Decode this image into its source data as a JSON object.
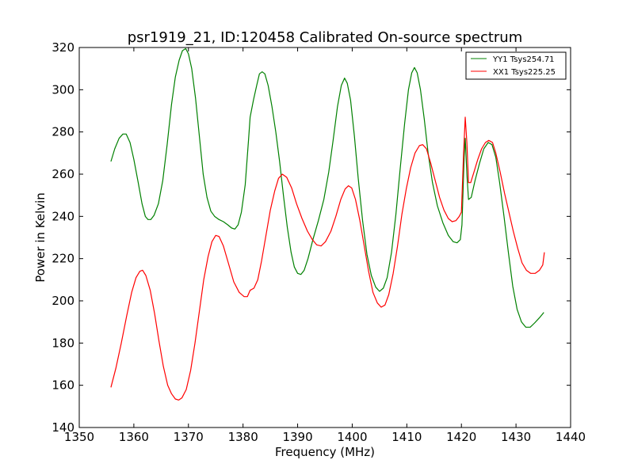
{
  "chart_data": {
    "type": "line",
    "title": "psr1919_21, ID:120458 Calibrated On-source spectrum",
    "xlabel": "Frequency (MHz)",
    "ylabel": "Power in Kelvin",
    "xlim": [
      1350,
      1440
    ],
    "ylim": [
      140,
      320
    ],
    "x_ticks": [
      1350,
      1360,
      1370,
      1380,
      1390,
      1400,
      1410,
      1420,
      1430,
      1440
    ],
    "y_ticks": [
      140,
      160,
      180,
      200,
      220,
      240,
      260,
      280,
      300,
      320
    ],
    "grid": false,
    "legend_position": "top-right",
    "series": [
      {
        "name": "YY1 Tsys254.71",
        "color": "#008000",
        "points": [
          [
            1355.8,
            266
          ],
          [
            1356.5,
            272
          ],
          [
            1357.3,
            277
          ],
          [
            1358.0,
            279
          ],
          [
            1358.6,
            279
          ],
          [
            1359.3,
            275
          ],
          [
            1360.0,
            267
          ],
          [
            1360.8,
            256
          ],
          [
            1361.5,
            246
          ],
          [
            1362.1,
            240
          ],
          [
            1362.6,
            238.5
          ],
          [
            1363.1,
            238.5
          ],
          [
            1363.7,
            240.5
          ],
          [
            1364.5,
            246
          ],
          [
            1365.3,
            257
          ],
          [
            1366.1,
            274
          ],
          [
            1366.9,
            293
          ],
          [
            1367.6,
            306
          ],
          [
            1368.3,
            314
          ],
          [
            1368.9,
            318.5
          ],
          [
            1369.5,
            319.5
          ],
          [
            1370.0,
            317
          ],
          [
            1370.6,
            310
          ],
          [
            1371.3,
            296
          ],
          [
            1372.0,
            278
          ],
          [
            1372.7,
            260
          ],
          [
            1373.4,
            249
          ],
          [
            1374.1,
            242.5
          ],
          [
            1374.8,
            240
          ],
          [
            1375.6,
            238.5
          ],
          [
            1376.4,
            237.5
          ],
          [
            1377.2,
            236
          ],
          [
            1377.9,
            234.5
          ],
          [
            1378.5,
            234
          ],
          [
            1379.1,
            236
          ],
          [
            1379.7,
            242
          ],
          [
            1380.4,
            255
          ],
          [
            1381.0,
            276
          ],
          [
            1381.3,
            287
          ],
          [
            1381.9,
            295
          ],
          [
            1382.5,
            302
          ],
          [
            1383.0,
            307.5
          ],
          [
            1383.5,
            308.5
          ],
          [
            1384.0,
            307.5
          ],
          [
            1384.6,
            302
          ],
          [
            1385.3,
            292
          ],
          [
            1386.0,
            280
          ],
          [
            1386.7,
            266
          ],
          [
            1387.4,
            250
          ],
          [
            1388.1,
            235
          ],
          [
            1388.8,
            223
          ],
          [
            1389.4,
            216
          ],
          [
            1390.0,
            213
          ],
          [
            1390.6,
            212.5
          ],
          [
            1391.2,
            214.5
          ],
          [
            1391.9,
            220
          ],
          [
            1392.8,
            229
          ],
          [
            1393.8,
            238
          ],
          [
            1394.8,
            248
          ],
          [
            1395.7,
            261
          ],
          [
            1396.5,
            276
          ],
          [
            1397.3,
            292
          ],
          [
            1398.0,
            302
          ],
          [
            1398.6,
            305.5
          ],
          [
            1399.1,
            303
          ],
          [
            1399.7,
            295
          ],
          [
            1400.4,
            278
          ],
          [
            1401.1,
            258
          ],
          [
            1401.9,
            238
          ],
          [
            1402.7,
            222
          ],
          [
            1403.5,
            212
          ],
          [
            1404.3,
            206.5
          ],
          [
            1405.0,
            204.5
          ],
          [
            1405.7,
            206
          ],
          [
            1406.4,
            211
          ],
          [
            1407.2,
            223
          ],
          [
            1408.0,
            241
          ],
          [
            1408.8,
            263
          ],
          [
            1409.6,
            284
          ],
          [
            1410.3,
            300
          ],
          [
            1410.9,
            308
          ],
          [
            1411.4,
            310.5
          ],
          [
            1411.9,
            308
          ],
          [
            1412.5,
            300
          ],
          [
            1413.2,
            286
          ],
          [
            1413.9,
            270
          ],
          [
            1414.7,
            256
          ],
          [
            1415.6,
            245
          ],
          [
            1416.6,
            237
          ],
          [
            1417.6,
            231
          ],
          [
            1418.5,
            228
          ],
          [
            1419.2,
            227.5
          ],
          [
            1419.8,
            229
          ],
          [
            1420.1,
            236
          ],
          [
            1420.5,
            268
          ],
          [
            1420.7,
            277
          ],
          [
            1421.0,
            260
          ],
          [
            1421.3,
            248
          ],
          [
            1421.8,
            249
          ],
          [
            1422.5,
            257
          ],
          [
            1423.3,
            265
          ],
          [
            1424.1,
            272
          ],
          [
            1424.9,
            275
          ],
          [
            1425.6,
            274
          ],
          [
            1426.3,
            268
          ],
          [
            1427.0,
            256
          ],
          [
            1427.8,
            240
          ],
          [
            1428.6,
            223
          ],
          [
            1429.4,
            207
          ],
          [
            1430.2,
            196
          ],
          [
            1431.0,
            190
          ],
          [
            1431.8,
            187.5
          ],
          [
            1432.6,
            187.5
          ],
          [
            1433.4,
            189.5
          ],
          [
            1434.3,
            192
          ],
          [
            1435.1,
            194.5
          ]
        ]
      },
      {
        "name": "XX1 Tsys225.25",
        "color": "#ff0000",
        "points": [
          [
            1355.8,
            159
          ],
          [
            1356.7,
            168
          ],
          [
            1357.7,
            180
          ],
          [
            1358.7,
            193
          ],
          [
            1359.6,
            204
          ],
          [
            1360.4,
            211
          ],
          [
            1361.1,
            214
          ],
          [
            1361.6,
            214.5
          ],
          [
            1362.2,
            212
          ],
          [
            1363.0,
            205
          ],
          [
            1363.8,
            194
          ],
          [
            1364.6,
            181
          ],
          [
            1365.4,
            169
          ],
          [
            1366.2,
            160
          ],
          [
            1366.9,
            156
          ],
          [
            1367.6,
            153.5
          ],
          [
            1368.2,
            153
          ],
          [
            1368.8,
            154
          ],
          [
            1369.6,
            158
          ],
          [
            1370.4,
            167
          ],
          [
            1371.2,
            180
          ],
          [
            1372.0,
            195
          ],
          [
            1372.8,
            210
          ],
          [
            1373.6,
            221
          ],
          [
            1374.3,
            228
          ],
          [
            1375.0,
            231
          ],
          [
            1375.6,
            230.5
          ],
          [
            1376.4,
            226
          ],
          [
            1377.3,
            218
          ],
          [
            1378.3,
            209
          ],
          [
            1379.3,
            204
          ],
          [
            1380.2,
            202
          ],
          [
            1380.8,
            202
          ],
          [
            1381.3,
            205
          ],
          [
            1382.0,
            206
          ],
          [
            1382.7,
            210
          ],
          [
            1383.4,
            219
          ],
          [
            1384.2,
            231
          ],
          [
            1385.0,
            243
          ],
          [
            1385.8,
            252
          ],
          [
            1386.5,
            258
          ],
          [
            1387.2,
            260
          ],
          [
            1388.0,
            258.5
          ],
          [
            1388.9,
            253.5
          ],
          [
            1389.8,
            246
          ],
          [
            1390.8,
            239
          ],
          [
            1391.8,
            233
          ],
          [
            1392.7,
            229
          ],
          [
            1393.5,
            226.5
          ],
          [
            1394.3,
            226
          ],
          [
            1395.1,
            228
          ],
          [
            1396.1,
            233
          ],
          [
            1397.0,
            240
          ],
          [
            1397.9,
            248
          ],
          [
            1398.7,
            253
          ],
          [
            1399.3,
            254.5
          ],
          [
            1399.9,
            253.5
          ],
          [
            1400.6,
            248
          ],
          [
            1401.4,
            238
          ],
          [
            1402.2,
            226
          ],
          [
            1403.0,
            214
          ],
          [
            1403.8,
            204
          ],
          [
            1404.6,
            199
          ],
          [
            1405.3,
            197
          ],
          [
            1406.0,
            198
          ],
          [
            1406.7,
            203
          ],
          [
            1407.5,
            213
          ],
          [
            1408.3,
            226
          ],
          [
            1409.1,
            241
          ],
          [
            1409.9,
            253
          ],
          [
            1410.7,
            263
          ],
          [
            1411.5,
            270
          ],
          [
            1412.3,
            273.5
          ],
          [
            1412.9,
            274
          ],
          [
            1413.6,
            272
          ],
          [
            1414.4,
            265
          ],
          [
            1415.2,
            257
          ],
          [
            1416.0,
            249
          ],
          [
            1416.8,
            243
          ],
          [
            1417.6,
            239
          ],
          [
            1418.3,
            237.5
          ],
          [
            1419.0,
            238
          ],
          [
            1419.6,
            240
          ],
          [
            1420.0,
            242
          ],
          [
            1420.4,
            270
          ],
          [
            1420.7,
            287
          ],
          [
            1421.0,
            275
          ],
          [
            1421.3,
            256
          ],
          [
            1421.7,
            256
          ],
          [
            1422.3,
            261
          ],
          [
            1423.0,
            267
          ],
          [
            1423.7,
            272
          ],
          [
            1424.4,
            275
          ],
          [
            1425.0,
            276
          ],
          [
            1425.7,
            275
          ],
          [
            1426.3,
            270
          ],
          [
            1427.1,
            261
          ],
          [
            1427.9,
            251
          ],
          [
            1428.7,
            242
          ],
          [
            1429.5,
            233
          ],
          [
            1430.3,
            225
          ],
          [
            1431.1,
            218
          ],
          [
            1431.9,
            214.5
          ],
          [
            1432.7,
            213
          ],
          [
            1433.5,
            213
          ],
          [
            1434.3,
            214.5
          ],
          [
            1434.9,
            217
          ],
          [
            1435.2,
            223
          ]
        ]
      }
    ]
  }
}
